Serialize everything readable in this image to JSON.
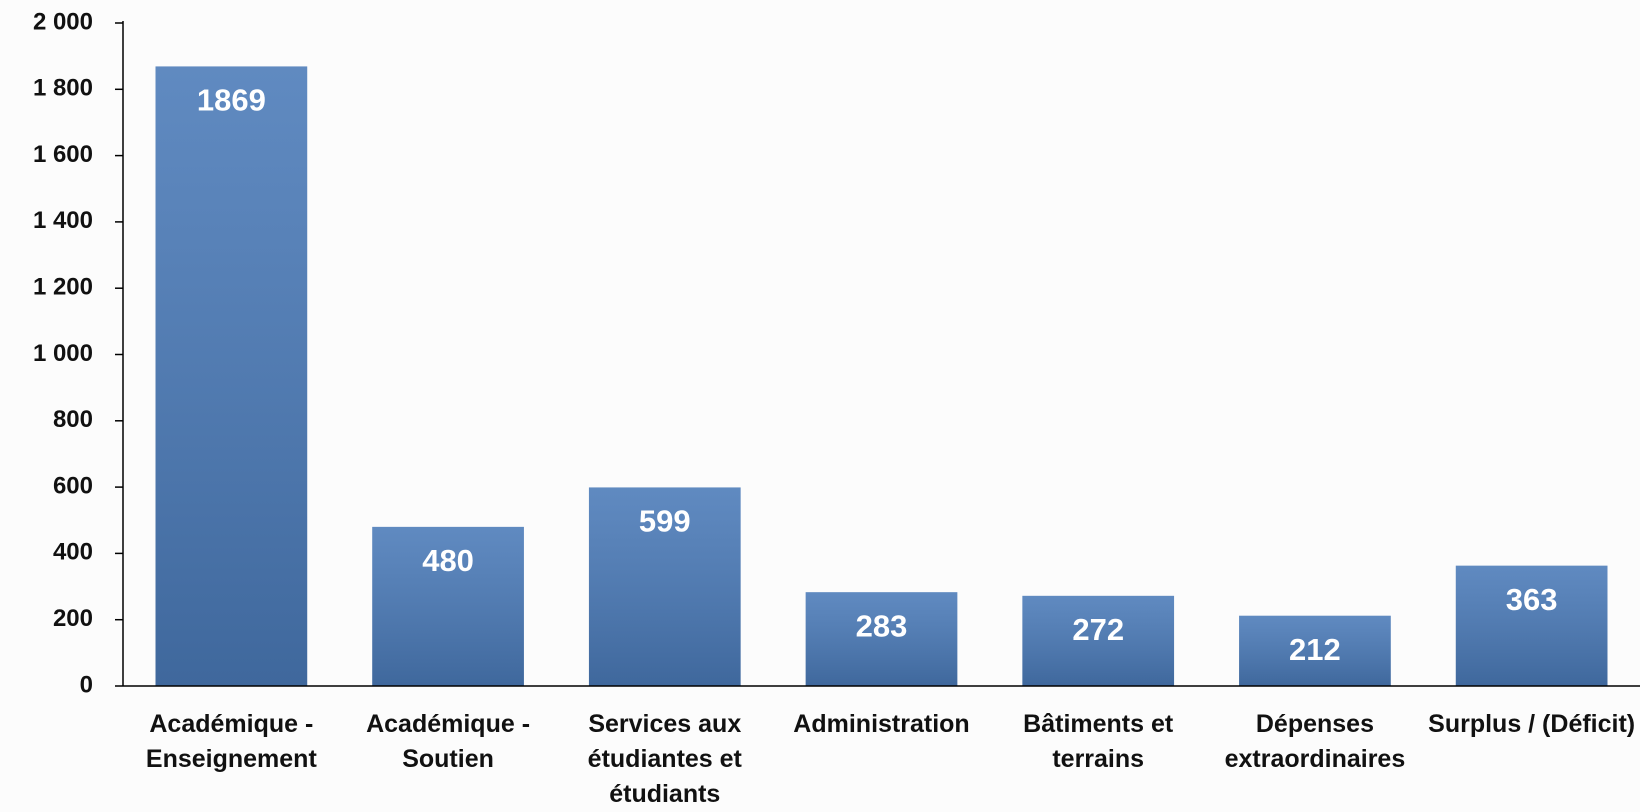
{
  "chart_data": {
    "type": "bar",
    "categories": [
      "Académique - Enseignement",
      "Académique - Soutien",
      "Services aux étudiantes et étudiants",
      "Administration",
      "Bâtiments et terrains",
      "Dépenses extraordinaires",
      "Surplus / (Déficit)"
    ],
    "values": [
      1869,
      480,
      599,
      283,
      272,
      212,
      363
    ],
    "color": "#4a7ab8",
    "ylim": [
      0,
      2000
    ],
    "yticks": [
      0,
      200,
      400,
      600,
      800,
      {
        "value": 1000,
        "label": "1 000"
      },
      {
        "value": 1200,
        "label": "1 200"
      },
      {
        "value": 1400,
        "label": "1 400"
      },
      {
        "value": 1600,
        "label": "1 600"
      },
      {
        "value": 1800,
        "label": "1 800"
      },
      {
        "value": 2000,
        "label": "2 000"
      }
    ],
    "grid": false
  }
}
